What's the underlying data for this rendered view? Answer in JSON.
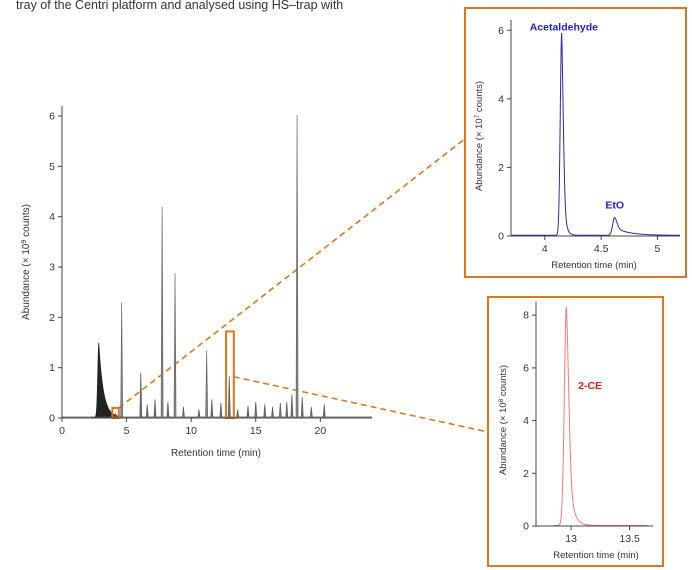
{
  "caption": "tray of the Centri platform and analysed using HS–trap with",
  "colors": {
    "inset_border": "#d9781f",
    "inset_a_line": "#2a2aa8",
    "inset_b_line": "#f07a7a",
    "main_line": "#222222",
    "peak_label_a": "#1f1fc8",
    "peak_label_b": "#e0201a"
  },
  "chart_data": [
    {
      "id": "main",
      "type": "line",
      "title": "",
      "xlabel": "Retention time (min)",
      "ylabel_prefix": "Abundance (× 10",
      "ylabel_exp": "9",
      "ylabel_suffix": " counts)",
      "xlim": [
        0,
        24
      ],
      "ylim": [
        0,
        6.2
      ],
      "xticks": [
        0,
        5,
        10,
        15,
        20
      ],
      "yticks": [
        0,
        1,
        2,
        3,
        4,
        5,
        6
      ],
      "xtick_labels": [
        "0",
        "5",
        "10",
        "15",
        "20"
      ],
      "ytick_labels": [
        "0",
        "1",
        "2",
        "3",
        "4",
        "5",
        "6"
      ],
      "grid": false,
      "baseline": 0.02,
      "broad_peak": {
        "x": 2.85,
        "height": 1.48,
        "rise_width": 0.12,
        "tail_width": 0.35
      },
      "peaks": [
        {
          "x": 4.15,
          "height": 0.07
        },
        {
          "x": 4.62,
          "height": 2.28
        },
        {
          "x": 6.1,
          "height": 0.88
        },
        {
          "x": 6.6,
          "height": 0.25
        },
        {
          "x": 7.2,
          "height": 0.35
        },
        {
          "x": 7.75,
          "height": 4.18
        },
        {
          "x": 8.2,
          "height": 0.3
        },
        {
          "x": 8.75,
          "height": 2.86
        },
        {
          "x": 9.4,
          "height": 0.2
        },
        {
          "x": 10.6,
          "height": 0.15
        },
        {
          "x": 11.2,
          "height": 1.32
        },
        {
          "x": 11.6,
          "height": 0.35
        },
        {
          "x": 12.3,
          "height": 0.28
        },
        {
          "x": 12.95,
          "height": 0.81
        },
        {
          "x": 13.6,
          "height": 0.15
        },
        {
          "x": 14.4,
          "height": 0.22
        },
        {
          "x": 15.0,
          "height": 0.3
        },
        {
          "x": 15.7,
          "height": 0.25
        },
        {
          "x": 16.3,
          "height": 0.2
        },
        {
          "x": 16.9,
          "height": 0.28
        },
        {
          "x": 17.4,
          "height": 0.3
        },
        {
          "x": 17.8,
          "height": 0.45
        },
        {
          "x": 18.2,
          "height": 6.0
        },
        {
          "x": 18.6,
          "height": 0.4
        },
        {
          "x": 19.3,
          "height": 0.2
        },
        {
          "x": 20.3,
          "height": 0.25
        }
      ],
      "highlight_boxes": [
        {
          "x0": 3.9,
          "x1": 4.4,
          "y0": 0.0,
          "y1": 0.2
        },
        {
          "x0": 12.7,
          "x1": 13.3,
          "y0": 0.0,
          "y1": 1.72
        }
      ]
    },
    {
      "id": "inset-a",
      "type": "line",
      "title": "",
      "xlabel": "Retention time (min)",
      "ylabel_prefix": "Abundance (× 10",
      "ylabel_exp": "7",
      "ylabel_suffix": " counts)",
      "xlim": [
        3.7,
        5.2
      ],
      "ylim": [
        0,
        6.3
      ],
      "xticks": [
        4,
        4.5,
        5
      ],
      "yticks": [
        0,
        2,
        4,
        6
      ],
      "xtick_labels": [
        "4",
        "4.5",
        "5"
      ],
      "ytick_labels": [
        "0",
        "2",
        "4",
        "6"
      ],
      "grid": false,
      "baseline": 0.02,
      "peaks": [
        {
          "x": 4.15,
          "height": 5.9,
          "width": 0.018,
          "tail": 0.02
        },
        {
          "x": 4.62,
          "height": 0.52,
          "width": 0.025,
          "tail": 0.12
        }
      ],
      "annotations": [
        {
          "text": "Acetaldehyde",
          "x": 4.15,
          "y": 6.0
        },
        {
          "text": "EtO",
          "x": 4.62,
          "y": 0.75
        }
      ]
    },
    {
      "id": "inset-b",
      "type": "line",
      "title": "",
      "xlabel": "Retention time (min)",
      "ylabel_prefix": "Abundance (× 10",
      "ylabel_exp": "8",
      "ylabel_suffix": " counts)",
      "xlim": [
        12.7,
        13.7
      ],
      "ylim": [
        0,
        8.5
      ],
      "xticks": [
        13,
        13.5
      ],
      "yticks": [
        0,
        2,
        4,
        6,
        8
      ],
      "xtick_labels": [
        "13",
        "13.5"
      ],
      "ytick_labels": [
        "0",
        "2",
        "4",
        "6",
        "8"
      ],
      "grid": false,
      "baseline": 0.02,
      "peaks": [
        {
          "x": 12.96,
          "height": 8.3,
          "width": 0.025,
          "tail": 0.035
        }
      ],
      "annotations": [
        {
          "text": "2-CE",
          "x": 13.06,
          "y": 5.2
        }
      ]
    }
  ]
}
